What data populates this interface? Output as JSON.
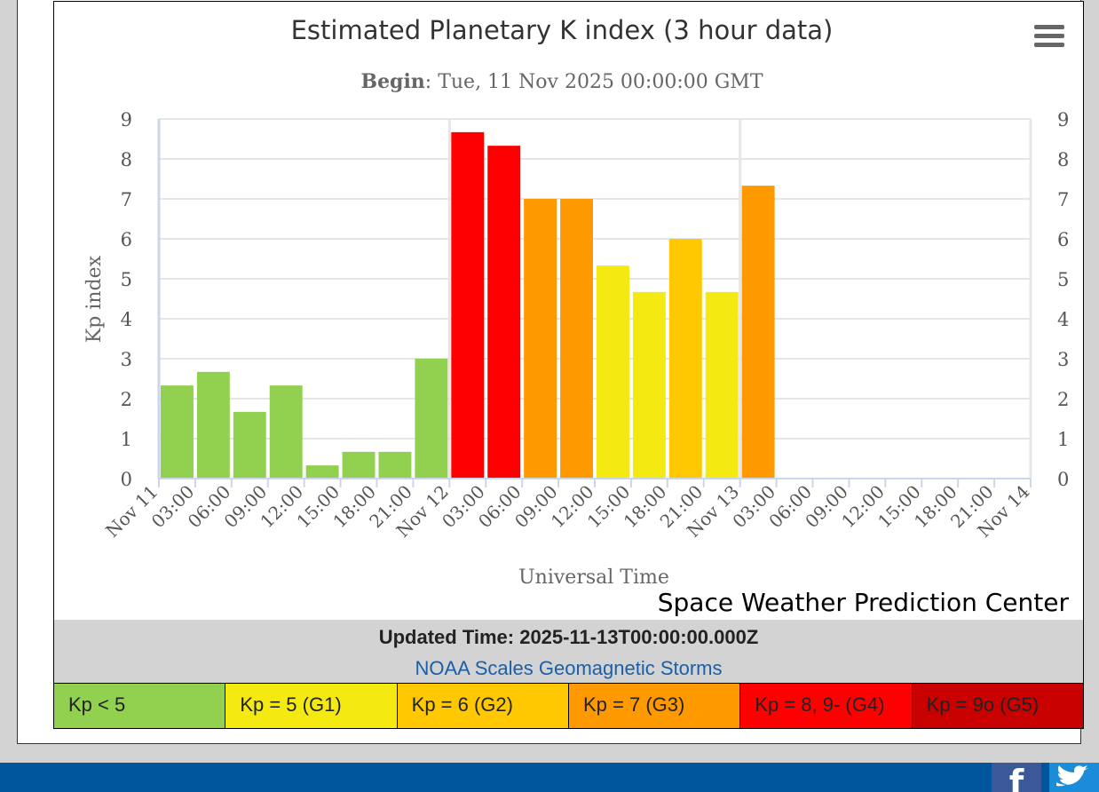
{
  "chart_data": {
    "type": "bar",
    "title": "Estimated Planetary K index (3 hour data)",
    "subtitle_label": "Begin",
    "subtitle_value": ": Tue, 11 Nov 2025 00:00:00 GMT",
    "xlabel": "Universal Time",
    "ylabel": "Kp index",
    "ylim": [
      0,
      9
    ],
    "yticks": [
      0,
      1,
      2,
      3,
      4,
      5,
      6,
      7,
      8,
      9
    ],
    "xticks": [
      "Nov 11",
      "03:00",
      "06:00",
      "09:00",
      "12:00",
      "15:00",
      "18:00",
      "21:00",
      "Nov 12",
      "03:00",
      "06:00",
      "09:00",
      "12:00",
      "15:00",
      "18:00",
      "21:00",
      "Nov 13",
      "03:00",
      "06:00",
      "09:00",
      "12:00",
      "15:00",
      "18:00",
      "21:00",
      "Nov 14"
    ],
    "values": [
      2.33,
      2.67,
      1.67,
      2.33,
      0.33,
      0.67,
      0.67,
      3.0,
      8.67,
      8.33,
      7.0,
      7.0,
      5.33,
      4.67,
      6.0,
      4.67,
      7.33
    ],
    "colors": [
      "#92d050",
      "#92d050",
      "#92d050",
      "#92d050",
      "#92d050",
      "#92d050",
      "#92d050",
      "#92d050",
      "#ff0000",
      "#ff0000",
      "#ff9900",
      "#ff9900",
      "#f4e911",
      "#f4e911",
      "#ffc800",
      "#f4e911",
      "#ff9900"
    ],
    "grid": true
  },
  "menu_icon": "hamburger-menu-icon",
  "credit": "Space Weather Prediction Center",
  "updated_time": "Updated Time: 2025-11-13T00:00:00.000Z",
  "scales_link": "NOAA Scales Geomagnetic Storms",
  "legend": [
    {
      "label": "Kp < 5",
      "color": "#92d050"
    },
    {
      "label": "Kp = 5 (G1)",
      "color": "#f4e911"
    },
    {
      "label": "Kp = 6 (G2)",
      "color": "#ffc800"
    },
    {
      "label": "Kp = 7 (G3)",
      "color": "#ff9900"
    },
    {
      "label": "Kp = 8, 9- (G4)",
      "color": "#ff0000"
    },
    {
      "label": "Kp = 9o (G5)",
      "color": "#c80000"
    }
  ],
  "footer": {
    "facebook_icon": "facebook-icon",
    "facebook_glyph": "f",
    "twitter_icon": "twitter-icon"
  }
}
